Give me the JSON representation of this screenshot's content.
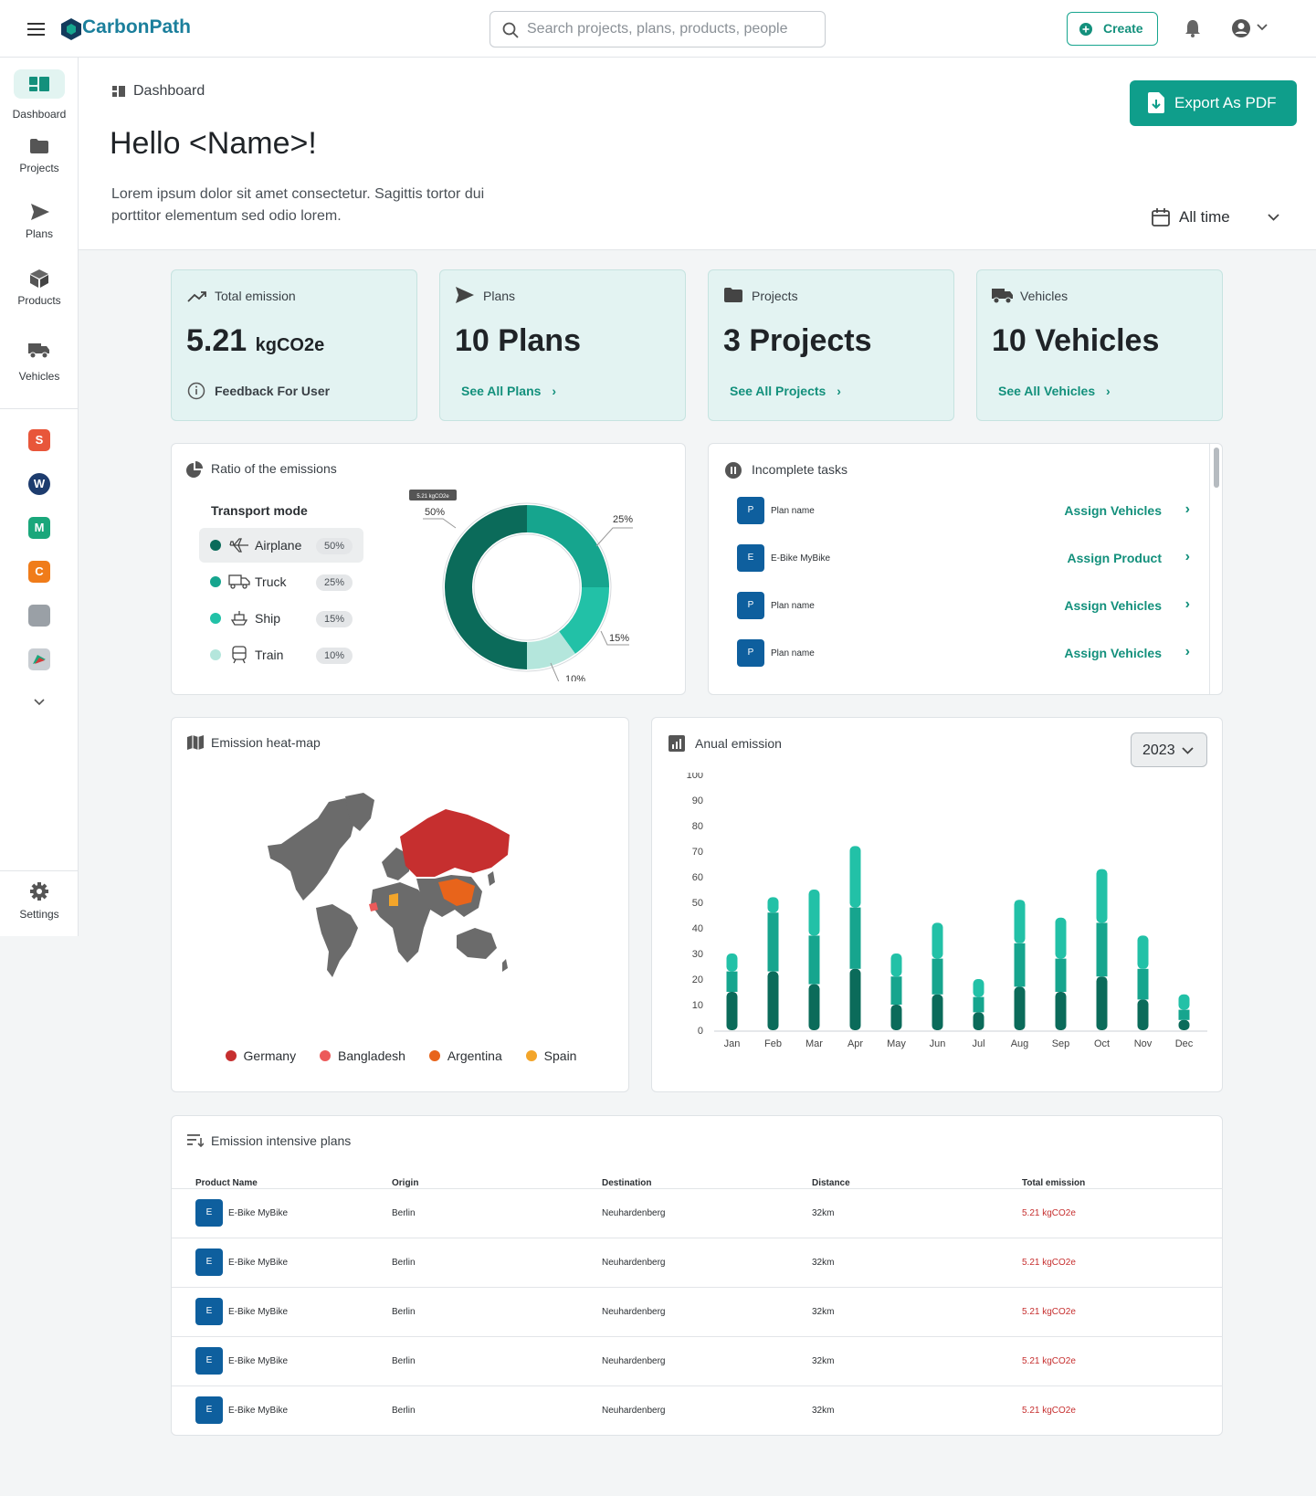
{
  "brand": {
    "name": "CarbonPath"
  },
  "search": {
    "placeholder": "Search projects, plans, products, people"
  },
  "topbar": {
    "create_label": "Create"
  },
  "sidebar": {
    "items": [
      {
        "label": "Dashboard",
        "icon": "dashboard-icon"
      },
      {
        "label": "Projects",
        "icon": "folder-icon"
      },
      {
        "label": "Plans",
        "icon": "send-icon"
      },
      {
        "label": "Products",
        "icon": "cube-icon"
      },
      {
        "label": "Vehicles",
        "icon": "truck-icon"
      }
    ],
    "apps": [
      {
        "letter": "S",
        "color": "#e8563a"
      },
      {
        "letter": "W",
        "color": "#1d3c6e"
      },
      {
        "letter": "M",
        "color": "#1aa77b"
      },
      {
        "letter": "C",
        "color": "#f07c1a"
      },
      {
        "letter": "",
        "color": "#9aa0a6"
      },
      {
        "letter": "",
        "color": "#c9ced3"
      }
    ],
    "settings_label": "Settings"
  },
  "header": {
    "breadcrumb": "Dashboard",
    "greeting": "Hello <Name>!",
    "intro": "Lorem ipsum dolor sit amet consectetur. Sagittis tortor dui porttitor elementum sed odio lorem.",
    "export_label": "Export As PDF",
    "range_label": "All time"
  },
  "stats": [
    {
      "title": "Total emission",
      "value": "5.21",
      "unit": "kgCO2e",
      "link": "Feedback For User"
    },
    {
      "title": "Plans",
      "value": "10 Plans",
      "link": "See All Plans"
    },
    {
      "title": "Projects",
      "value": "3 Projects",
      "link": "See All Projects"
    },
    {
      "title": "Vehicles",
      "value": "10 Vehicles",
      "link": "See All Vehicles"
    }
  ],
  "ratio": {
    "title": "Ratio of the emissions",
    "subtitle": "Transport mode",
    "tooltip": "5.21 kgCO2e",
    "modes": [
      {
        "label": "Airplane",
        "pct": "50%",
        "color": "#0b6b5a"
      },
      {
        "label": "Truck",
        "pct": "25%",
        "color": "#16a58e"
      },
      {
        "label": "Ship",
        "pct": "15%",
        "color": "#22c1a7"
      },
      {
        "label": "Train",
        "pct": "10%",
        "color": "#b4e6dc"
      }
    ]
  },
  "tasks": {
    "title": "Incomplete tasks",
    "items": [
      {
        "badge": "P",
        "name": "Plan name",
        "action": "Assign Vehicles"
      },
      {
        "badge": "E",
        "name": "E-Bike MyBike",
        "action": "Assign Product"
      },
      {
        "badge": "P",
        "name": "Plan name",
        "action": "Assign Vehicles"
      },
      {
        "badge": "P",
        "name": "Plan name",
        "action": "Assign Vehicles"
      }
    ]
  },
  "heatmap": {
    "title": "Emission heat-map",
    "legend": [
      {
        "label": "Germany",
        "color": "#c62f2f"
      },
      {
        "label": "Bangladesh",
        "color": "#ec5a5a"
      },
      {
        "label": "Argentina",
        "color": "#e8641b"
      },
      {
        "label": "Spain",
        "color": "#f3a52a"
      }
    ]
  },
  "annual": {
    "title": "Anual emission",
    "year": "2023"
  },
  "chart_data": {
    "type": "bar",
    "stacked": true,
    "categories": [
      "Jan",
      "Feb",
      "Mar",
      "Apr",
      "May",
      "Jun",
      "Jul",
      "Aug",
      "Sep",
      "Oct",
      "Nov",
      "Dec"
    ],
    "series": [
      {
        "values": [
          15,
          23,
          18,
          24,
          10,
          14,
          7,
          17,
          15,
          21,
          12,
          4
        ]
      },
      {
        "values": [
          8,
          23,
          19,
          24,
          11,
          14,
          6,
          17,
          13,
          21,
          12,
          4
        ]
      },
      {
        "values": [
          7,
          6,
          18,
          24,
          9,
          14,
          7,
          17,
          16,
          21,
          13,
          6
        ]
      }
    ],
    "colors": [
      "#0b6b5a",
      "#16a58e",
      "#22c1a7"
    ],
    "ylim": [
      0,
      100
    ],
    "yticks": [
      0,
      10,
      20,
      30,
      40,
      50,
      60,
      70,
      80,
      90,
      100
    ]
  },
  "plans_table": {
    "title": "Emission intensive plans",
    "columns": [
      "Product Name",
      "Origin",
      "Destination",
      "Distance",
      "Total emission"
    ],
    "rows": [
      {
        "badge": "E",
        "name": "E-Bike MyBike",
        "origin": "Berlin",
        "destination": "Neuhardenberg",
        "distance": "32km",
        "emission": "5.21 kgCO2e"
      },
      {
        "badge": "E",
        "name": "E-Bike MyBike",
        "origin": "Berlin",
        "destination": "Neuhardenberg",
        "distance": "32km",
        "emission": "5.21 kgCO2e"
      },
      {
        "badge": "E",
        "name": "E-Bike MyBike",
        "origin": "Berlin",
        "destination": "Neuhardenberg",
        "distance": "32km",
        "emission": "5.21 kgCO2e"
      },
      {
        "badge": "E",
        "name": "E-Bike MyBike",
        "origin": "Berlin",
        "destination": "Neuhardenberg",
        "distance": "32km",
        "emission": "5.21 kgCO2e"
      },
      {
        "badge": "E",
        "name": "E-Bike MyBike",
        "origin": "Berlin",
        "destination": "Neuhardenberg",
        "distance": "32km",
        "emission": "5.21 kgCO2e"
      }
    ]
  }
}
